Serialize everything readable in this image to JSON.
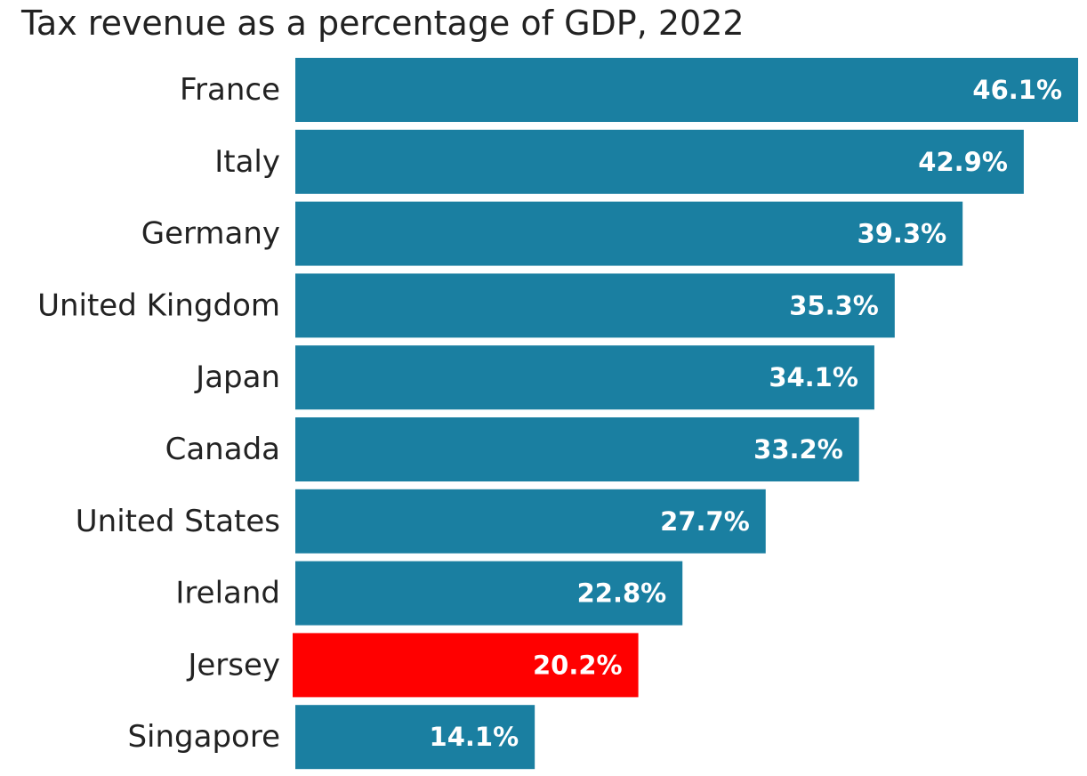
{
  "chart_data": {
    "type": "bar",
    "orientation": "horizontal",
    "title": "Tax revenue as a percentage of GDP, 2022",
    "xlabel": "",
    "ylabel": "",
    "xlim": [
      0,
      46.1
    ],
    "grid": false,
    "legend": "none",
    "categories": [
      "France",
      "Italy",
      "Germany",
      "United Kingdom",
      "Japan",
      "Canada",
      "United States",
      "Ireland",
      "Jersey",
      "Singapore"
    ],
    "values": [
      46.1,
      42.9,
      39.3,
      35.3,
      34.1,
      33.2,
      27.7,
      22.8,
      20.2,
      14.1
    ],
    "value_labels": [
      "46.1%",
      "42.9%",
      "39.3%",
      "35.3%",
      "34.1%",
      "33.2%",
      "27.7%",
      "22.8%",
      "20.2%",
      "14.1%"
    ],
    "colors": {
      "default": "#1a7fa1",
      "highlight": "#ff0000",
      "highlight_category": "Jersey"
    }
  }
}
